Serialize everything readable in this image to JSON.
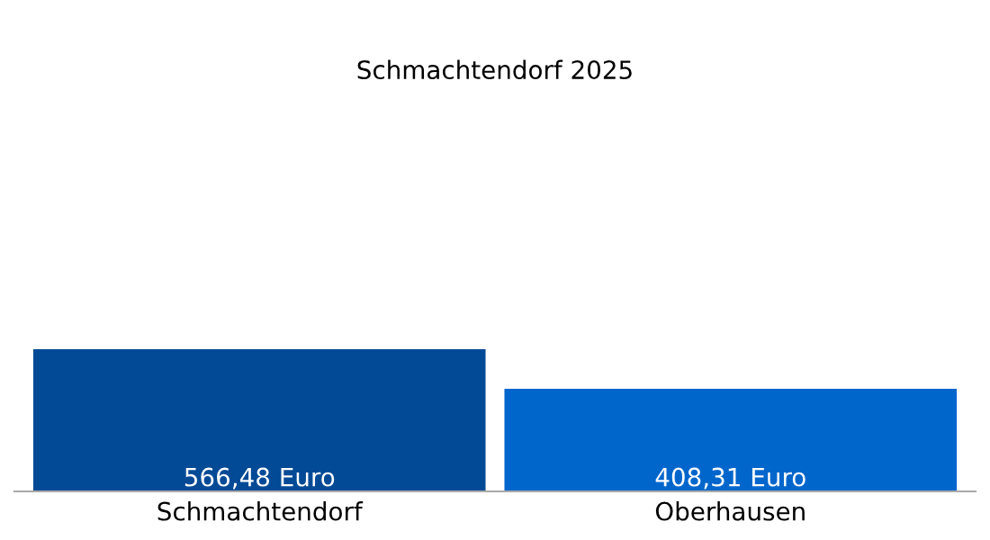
{
  "chart_data": {
    "type": "bar",
    "title": "Schmachtendorf 2025",
    "categories": [
      "Schmachtendorf",
      "Oberhausen"
    ],
    "values": [
      566.48,
      408.31
    ],
    "colors": [
      "#034a96",
      "#0066cc"
    ],
    "value_labels": [
      "566,48 Euro",
      "408,31 Euro"
    ],
    "grid": false,
    "legend": false
  }
}
